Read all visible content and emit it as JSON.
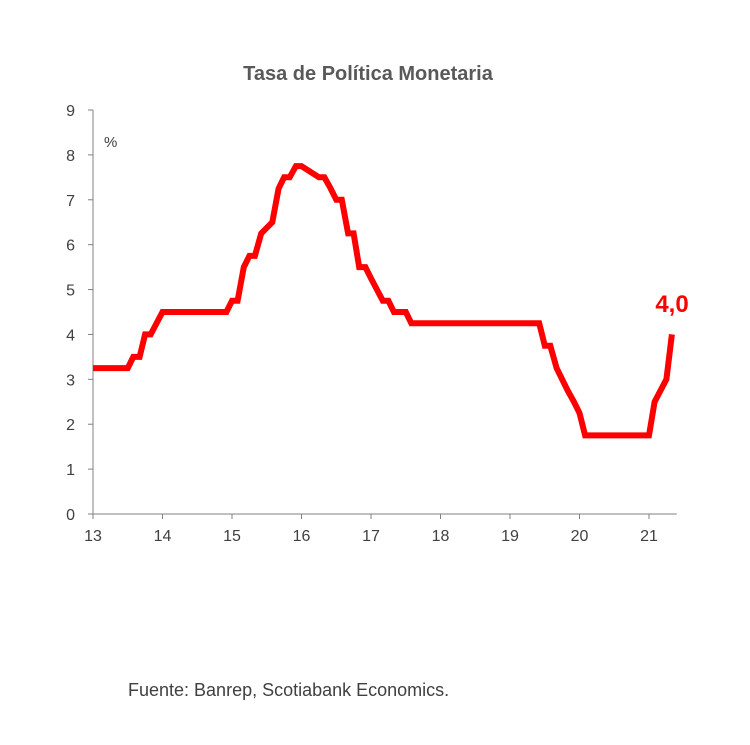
{
  "chart_data": {
    "type": "line",
    "title": "Tasa de Política Monetaria",
    "ylabel": "%",
    "xlabel": "",
    "xlim": [
      13,
      21.4
    ],
    "ylim": [
      0,
      9
    ],
    "x_ticks": [
      "13",
      "14",
      "15",
      "16",
      "17",
      "18",
      "19",
      "20",
      "21"
    ],
    "y_ticks": [
      "0",
      "1",
      "2",
      "3",
      "4",
      "5",
      "6",
      "7",
      "8",
      "9"
    ],
    "grid": false,
    "line_color": "#ff0000",
    "annotation": {
      "text": "4,0",
      "color": "#ff0000"
    },
    "series": [
      {
        "x": [
          13.0,
          13.5,
          13.58,
          13.67,
          13.75,
          13.83,
          14.0,
          14.92,
          15.0,
          15.08,
          15.17,
          15.25,
          15.33,
          15.42,
          15.58,
          15.67,
          15.75,
          15.83,
          15.92,
          16.0,
          16.25,
          16.33,
          16.42,
          16.5,
          16.58,
          16.67,
          16.75,
          16.83,
          16.92,
          17.0,
          17.17,
          17.25,
          17.33,
          17.42,
          17.5,
          17.58,
          17.67,
          19.42,
          19.5,
          19.58,
          19.67,
          19.83,
          19.92,
          20.0,
          20.08,
          20.5,
          21.0,
          21.08,
          21.25,
          21.33
        ],
        "values": [
          3.25,
          3.25,
          3.5,
          3.5,
          4.0,
          4.0,
          4.5,
          4.5,
          4.75,
          4.75,
          5.5,
          5.75,
          5.75,
          6.25,
          6.5,
          7.25,
          7.5,
          7.5,
          7.75,
          7.75,
          7.5,
          7.5,
          7.25,
          7.0,
          7.0,
          6.25,
          6.25,
          5.5,
          5.5,
          5.25,
          4.75,
          4.75,
          4.5,
          4.5,
          4.5,
          4.25,
          4.25,
          4.25,
          3.75,
          3.75,
          3.25,
          2.75,
          2.5,
          2.25,
          1.75,
          1.75,
          1.75,
          2.5,
          3.0,
          4.0
        ]
      }
    ],
    "source": "Fuente: Banrep, Scotiabank Economics."
  }
}
